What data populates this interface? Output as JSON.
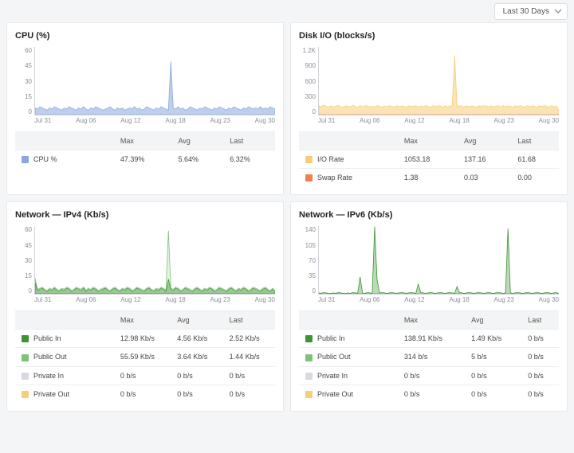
{
  "range_selector": {
    "label": "Last 30 Days"
  },
  "xaxis_labels": [
    "Jul 31",
    "Aug 06",
    "Aug 12",
    "Aug 18",
    "Aug 23",
    "Aug 30"
  ],
  "table_headers": {
    "max": "Max",
    "avg": "Avg",
    "last": "Last"
  },
  "panels": {
    "cpu": {
      "title": "CPU (%)",
      "type": "area",
      "yticks": [
        "60",
        "45",
        "30",
        "15",
        "0"
      ],
      "ylim": [
        0,
        60
      ],
      "series": [
        {
          "name": "CPU %",
          "color": "#89a8dd",
          "fill_opacity": 0.55,
          "values": [
            6,
            5,
            7,
            6,
            5,
            4,
            6,
            5,
            7,
            6,
            5,
            4,
            6,
            5,
            7,
            6,
            5,
            4,
            6,
            5,
            7,
            5,
            4,
            6,
            5,
            7,
            6,
            5,
            4,
            5,
            6,
            7,
            5,
            4,
            6,
            5,
            6,
            4,
            5,
            6,
            5,
            7,
            5,
            6,
            4,
            5,
            7,
            6,
            5,
            4,
            6,
            5,
            7,
            6,
            5,
            4,
            47,
            6,
            5,
            7,
            5,
            6,
            4,
            5,
            7,
            6,
            5,
            4,
            6,
            5,
            7,
            6,
            5,
            4,
            6,
            5,
            7,
            6,
            5,
            4,
            6,
            5,
            7,
            6,
            5,
            4,
            6,
            5,
            7,
            6,
            5,
            6,
            5,
            7,
            5,
            6,
            5,
            7,
            6,
            5
          ]
        }
      ],
      "legend": [
        {
          "label": "CPU %",
          "color": "#89a8dd",
          "max": "47.39%",
          "avg": "5.64%",
          "last": "6.32%"
        }
      ]
    },
    "disk": {
      "title": "Disk I/O (blocks/s)",
      "type": "area",
      "yticks": [
        "1.2K",
        "900",
        "600",
        "300",
        "0"
      ],
      "ylim": [
        0,
        1200
      ],
      "series": [
        {
          "name": "I/O Rate",
          "color": "#f6cd79",
          "fill_opacity": 0.55,
          "values": [
            160,
            140,
            170,
            150,
            130,
            160,
            140,
            150,
            165,
            140,
            130,
            160,
            150,
            140,
            165,
            150,
            130,
            160,
            140,
            155,
            160,
            135,
            150,
            140,
            160,
            150,
            130,
            155,
            140,
            160,
            150,
            135,
            160,
            140,
            155,
            150,
            130,
            160,
            145,
            150,
            160,
            135,
            155,
            140,
            160,
            150,
            130,
            160,
            145,
            155,
            160,
            130,
            160,
            140,
            150,
            160,
            1053,
            145,
            160,
            150,
            135,
            160,
            140,
            155,
            150,
            130,
            160,
            145,
            160,
            155,
            130,
            160,
            140,
            150,
            160,
            135,
            160,
            140,
            155,
            150,
            130,
            160,
            145,
            160,
            150,
            135,
            160,
            140,
            155,
            150,
            130,
            160,
            145,
            160,
            150,
            135,
            160,
            140,
            155,
            62
          ]
        },
        {
          "name": "Swap Rate",
          "color": "#f2804e",
          "fill_opacity": 0.0,
          "values": [
            0,
            0,
            0,
            0,
            0,
            0,
            0,
            0,
            0,
            0,
            0,
            0,
            0,
            0,
            0,
            0,
            0,
            0,
            0,
            0,
            0,
            0,
            0,
            0,
            0,
            0,
            0,
            0,
            0,
            0,
            0,
            0,
            0,
            0,
            0,
            0,
            0,
            0,
            0,
            0,
            0,
            0,
            0,
            0,
            0,
            0,
            0,
            0,
            0,
            0,
            0,
            0,
            0,
            0,
            0,
            0,
            1.38,
            0,
            0,
            0,
            0,
            0,
            0,
            0,
            0,
            0,
            0,
            0,
            0,
            0,
            0,
            0,
            0,
            0,
            0,
            0,
            0,
            0,
            0,
            0,
            0,
            0,
            0,
            0,
            0,
            0,
            0,
            0,
            0,
            0,
            0,
            0,
            0,
            0,
            0,
            0,
            0,
            0,
            0,
            0
          ]
        }
      ],
      "legend": [
        {
          "label": "I/O Rate",
          "color": "#f6cd79",
          "max": "1053.18",
          "avg": "137.16",
          "last": "61.68"
        },
        {
          "label": "Swap Rate",
          "color": "#f2804e",
          "max": "1.38",
          "avg": "0.03",
          "last": "0.00"
        }
      ]
    },
    "ipv4": {
      "title": "Network — IPv4 (Kb/s)",
      "type": "area",
      "yticks": [
        "60",
        "45",
        "30",
        "15",
        "0"
      ],
      "ylim": [
        0,
        60
      ],
      "series": [
        {
          "name": "Public Out",
          "color": "#7ec27a",
          "fill_opacity": 0.2,
          "values": [
            14,
            4,
            5,
            6,
            4,
            3,
            5,
            4,
            6,
            4,
            3,
            5,
            4,
            6,
            5,
            3,
            4,
            6,
            5,
            4,
            6,
            3,
            5,
            4,
            6,
            5,
            3,
            4,
            5,
            6,
            4,
            3,
            5,
            6,
            4,
            3,
            5,
            4,
            6,
            5,
            3,
            4,
            6,
            5,
            4,
            3,
            5,
            6,
            4,
            3,
            5,
            4,
            6,
            5,
            3,
            56,
            5,
            4,
            6,
            5,
            3,
            4,
            6,
            5,
            4,
            3,
            5,
            6,
            4,
            3,
            5,
            4,
            6,
            5,
            3,
            4,
            6,
            5,
            4,
            3,
            5,
            6,
            4,
            3,
            5,
            4,
            6,
            5,
            3,
            4,
            6,
            5,
            4,
            3,
            5,
            6,
            4,
            3,
            5,
            1.4
          ]
        },
        {
          "name": "Public In",
          "color": "#3d9432",
          "fill_opacity": 0.45,
          "values": [
            10,
            3,
            4,
            5,
            3,
            2,
            4,
            3,
            5,
            3,
            2,
            4,
            3,
            5,
            4,
            2,
            3,
            5,
            4,
            3,
            5,
            2,
            4,
            3,
            5,
            4,
            2,
            3,
            4,
            5,
            3,
            2,
            4,
            5,
            3,
            2,
            4,
            3,
            5,
            4,
            2,
            3,
            5,
            4,
            3,
            2,
            4,
            5,
            3,
            2,
            4,
            3,
            5,
            4,
            2,
            13,
            4,
            3,
            5,
            4,
            2,
            3,
            5,
            4,
            3,
            2,
            4,
            5,
            3,
            2,
            4,
            3,
            5,
            4,
            2,
            3,
            5,
            4,
            3,
            2,
            4,
            5,
            3,
            2,
            4,
            3,
            5,
            4,
            2,
            3,
            5,
            4,
            3,
            2,
            4,
            5,
            3,
            2,
            4,
            2.5
          ]
        }
      ],
      "legend": [
        {
          "label": "Public In",
          "color": "#3d9432",
          "max": "12.98 Kb/s",
          "avg": "4.56 Kb/s",
          "last": "2.52 Kb/s"
        },
        {
          "label": "Public Out",
          "color": "#7ec27a",
          "max": "55.59 Kb/s",
          "avg": "3.64 Kb/s",
          "last": "1.44 Kb/s"
        },
        {
          "label": "Private In",
          "color": "#d7dae0",
          "max": "0 b/s",
          "avg": "0 b/s",
          "last": "0 b/s"
        },
        {
          "label": "Private Out",
          "color": "#f6cd79",
          "max": "0 b/s",
          "avg": "0 b/s",
          "last": "0 b/s"
        }
      ]
    },
    "ipv6": {
      "title": "Network — IPv6 (Kb/s)",
      "type": "area",
      "yticks": [
        "140",
        "105",
        "70",
        "35",
        "0"
      ],
      "ylim": [
        0,
        140
      ],
      "series": [
        {
          "name": "Public In",
          "color": "#3d9432",
          "fill_opacity": 0.35,
          "values": [
            2,
            1,
            3,
            2,
            1,
            1,
            2,
            1,
            3,
            2,
            1,
            1,
            2,
            1,
            3,
            2,
            1,
            35,
            2,
            1,
            3,
            2,
            1,
            139,
            30,
            2,
            3,
            2,
            1,
            2,
            3,
            2,
            1,
            2,
            3,
            2,
            1,
            2,
            3,
            2,
            1,
            20,
            3,
            2,
            1,
            2,
            3,
            2,
            1,
            2,
            3,
            2,
            1,
            2,
            3,
            2,
            1,
            15,
            3,
            2,
            1,
            2,
            3,
            2,
            1,
            2,
            3,
            2,
            1,
            2,
            3,
            2,
            1,
            2,
            3,
            2,
            1,
            2,
            135,
            2,
            1,
            2,
            3,
            2,
            1,
            2,
            3,
            2,
            1,
            2,
            3,
            2,
            1,
            2,
            3,
            2,
            1,
            2,
            3,
            0
          ]
        }
      ],
      "legend": [
        {
          "label": "Public In",
          "color": "#3d9432",
          "max": "138.91 Kb/s",
          "avg": "1.49 Kb/s",
          "last": "0 b/s"
        },
        {
          "label": "Public Out",
          "color": "#7ec27a",
          "max": "314 b/s",
          "avg": "5 b/s",
          "last": "0 b/s"
        },
        {
          "label": "Private In",
          "color": "#d7dae0",
          "max": "0 b/s",
          "avg": "0 b/s",
          "last": "0 b/s"
        },
        {
          "label": "Private Out",
          "color": "#f6cd79",
          "max": "0 b/s",
          "avg": "0 b/s",
          "last": "0 b/s"
        }
      ]
    }
  }
}
